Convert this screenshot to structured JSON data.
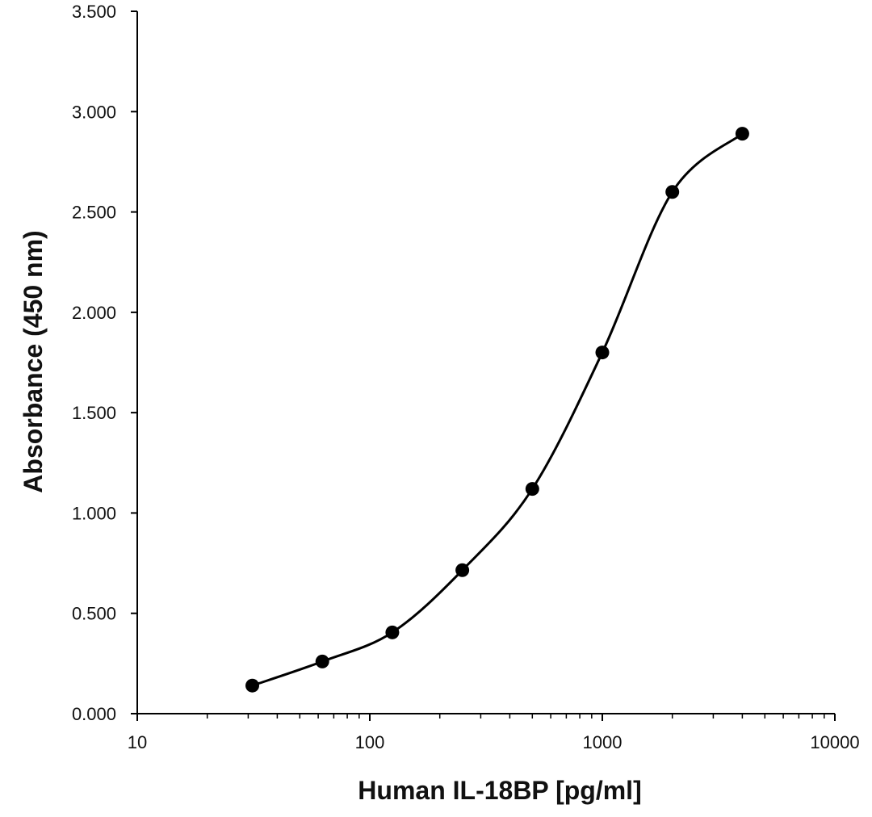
{
  "chart_data": {
    "type": "scatter",
    "title": "",
    "xlabel": "Human IL-18BP [pg/ml]",
    "ylabel": "Absorbance (450 nm)",
    "x_scale": "log",
    "xlim": [
      10,
      10000
    ],
    "ylim": [
      0,
      3.5
    ],
    "x_tick_labels": [
      "10",
      "100",
      "1000",
      "10000"
    ],
    "y_tick_labels": [
      "0.000",
      "0.500",
      "1.000",
      "1.500",
      "2.000",
      "2.500",
      "3.000",
      "3.500"
    ],
    "grid": false,
    "legend": "none",
    "line": "smoothed",
    "series": [
      {
        "x": [
          31.25,
          62.5,
          125,
          250,
          500,
          1000,
          2000,
          4000
        ],
        "y": [
          0.14,
          0.26,
          0.405,
          0.715,
          1.12,
          1.8,
          2.6,
          2.89
        ]
      }
    ],
    "colors": {
      "marker": "#000000",
      "line": "#000000",
      "axis": "#000000"
    }
  }
}
